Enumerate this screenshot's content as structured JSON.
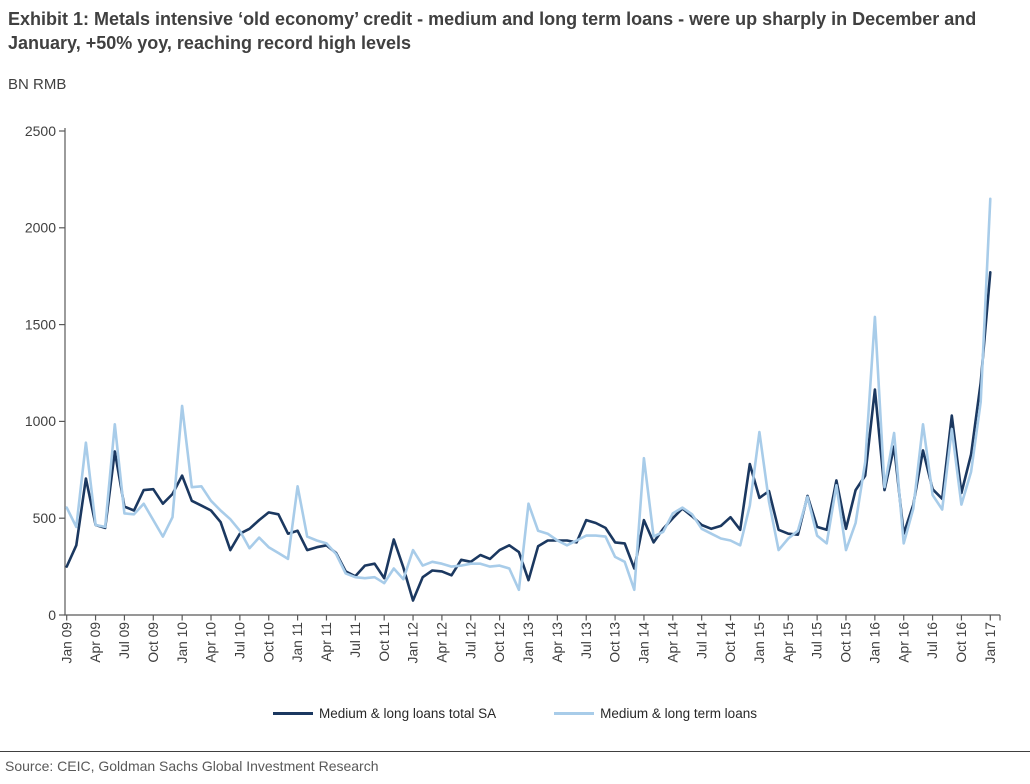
{
  "header": {
    "title": "Exhibit 1: Metals intensive ‘old economy’ credit - medium and long term loans - were up sharply in December and January, +50% yoy, reaching record high levels",
    "unit_label": "BN RMB"
  },
  "footer": {
    "source": "Source: CEIC, Goldman Sachs Global Investment Research"
  },
  "colors": {
    "title_text": "#404040",
    "axis_line": "#595959",
    "tick_label": "#404040",
    "legend_text": "#282828",
    "source_text": "#595959"
  },
  "chart_data": {
    "type": "line",
    "title": "Exhibit 1: Metals intensive ‘old economy’ credit - medium and long term loans - were up sharply in December and January, +50% yoy, reaching record high levels",
    "ylabel": "BN RMB",
    "ylim": [
      0,
      2500
    ],
    "ytick_step": 500,
    "grid": false,
    "legend_position": "bottom",
    "x_tick_every": 3,
    "x": [
      "Jan 09",
      "Feb 09",
      "Mar 09",
      "Apr 09",
      "May 09",
      "Jun 09",
      "Jul 09",
      "Aug 09",
      "Sep 09",
      "Oct 09",
      "Nov 09",
      "Dec 09",
      "Jan 10",
      "Feb 10",
      "Mar 10",
      "Apr 10",
      "May 10",
      "Jun 10",
      "Jul 10",
      "Aug 10",
      "Sep 10",
      "Oct 10",
      "Nov 10",
      "Dec 10",
      "Jan 11",
      "Feb 11",
      "Mar 11",
      "Apr 11",
      "May 11",
      "Jun 11",
      "Jul 11",
      "Aug 11",
      "Sep 11",
      "Oct 11",
      "Nov 11",
      "Dec 11",
      "Jan 12",
      "Feb 12",
      "Mar 12",
      "Apr 12",
      "May 12",
      "Jun 12",
      "Jul 12",
      "Aug 12",
      "Sep 12",
      "Oct 12",
      "Nov 12",
      "Dec 12",
      "Jan 13",
      "Feb 13",
      "Mar 13",
      "Apr 13",
      "May 13",
      "Jun 13",
      "Jul 13",
      "Aug 13",
      "Sep 13",
      "Oct 13",
      "Nov 13",
      "Dec 13",
      "Jan 14",
      "Feb 14",
      "Mar 14",
      "Apr 14",
      "May 14",
      "Jun 14",
      "Jul 14",
      "Aug 14",
      "Sep 14",
      "Oct 14",
      "Nov 14",
      "Dec 14",
      "Jan 15",
      "Feb 15",
      "Mar 15",
      "Apr 15",
      "May 15",
      "Jun 15",
      "Jul 15",
      "Aug 15",
      "Sep 15",
      "Oct 15",
      "Nov 15",
      "Dec 15",
      "Jan 16",
      "Feb 16",
      "Mar 16",
      "Apr 16",
      "May 16",
      "Jun 16",
      "Jul 16",
      "Aug 16",
      "Sep 16",
      "Oct 16",
      "Nov 16",
      "Dec 16",
      "Jan 17"
    ],
    "series": [
      {
        "name": "Medium & long loans total SA",
        "color": "#1b3860",
        "stroke_width": 2.6,
        "values": [
          250,
          360,
          705,
          465,
          450,
          845,
          560,
          540,
          645,
          650,
          575,
          625,
          720,
          590,
          565,
          540,
          480,
          335,
          420,
          445,
          490,
          530,
          520,
          420,
          435,
          335,
          350,
          360,
          320,
          225,
          200,
          255,
          265,
          190,
          390,
          245,
          75,
          195,
          230,
          225,
          205,
          285,
          275,
          310,
          290,
          335,
          360,
          325,
          180,
          355,
          385,
          385,
          385,
          375,
          490,
          475,
          450,
          375,
          370,
          240,
          490,
          375,
          445,
          500,
          550,
          510,
          465,
          445,
          460,
          505,
          440,
          780,
          605,
          640,
          440,
          420,
          415,
          615,
          455,
          440,
          695,
          445,
          645,
          720,
          1165,
          645,
          870,
          420,
          570,
          850,
          650,
          600,
          1030,
          630,
          830,
          1200,
          1770
        ]
      },
      {
        "name": "Medium & long term loans",
        "color": "#a8cce9",
        "stroke_width": 2.6,
        "values": [
          555,
          455,
          890,
          465,
          455,
          985,
          525,
          520,
          575,
          490,
          405,
          505,
          1080,
          660,
          665,
          590,
          540,
          495,
          435,
          345,
          400,
          350,
          320,
          290,
          665,
          405,
          385,
          370,
          315,
          215,
          195,
          190,
          195,
          165,
          240,
          185,
          335,
          255,
          275,
          265,
          250,
          255,
          265,
          265,
          250,
          255,
          240,
          130,
          575,
          435,
          420,
          385,
          360,
          385,
          410,
          410,
          405,
          300,
          275,
          130,
          810,
          405,
          430,
          525,
          555,
          520,
          445,
          420,
          395,
          385,
          360,
          565,
          945,
          585,
          335,
          395,
          435,
          610,
          410,
          370,
          670,
          335,
          475,
          790,
          1540,
          660,
          940,
          370,
          550,
          985,
          620,
          545,
          960,
          570,
          740,
          1100,
          2150
        ]
      }
    ]
  }
}
